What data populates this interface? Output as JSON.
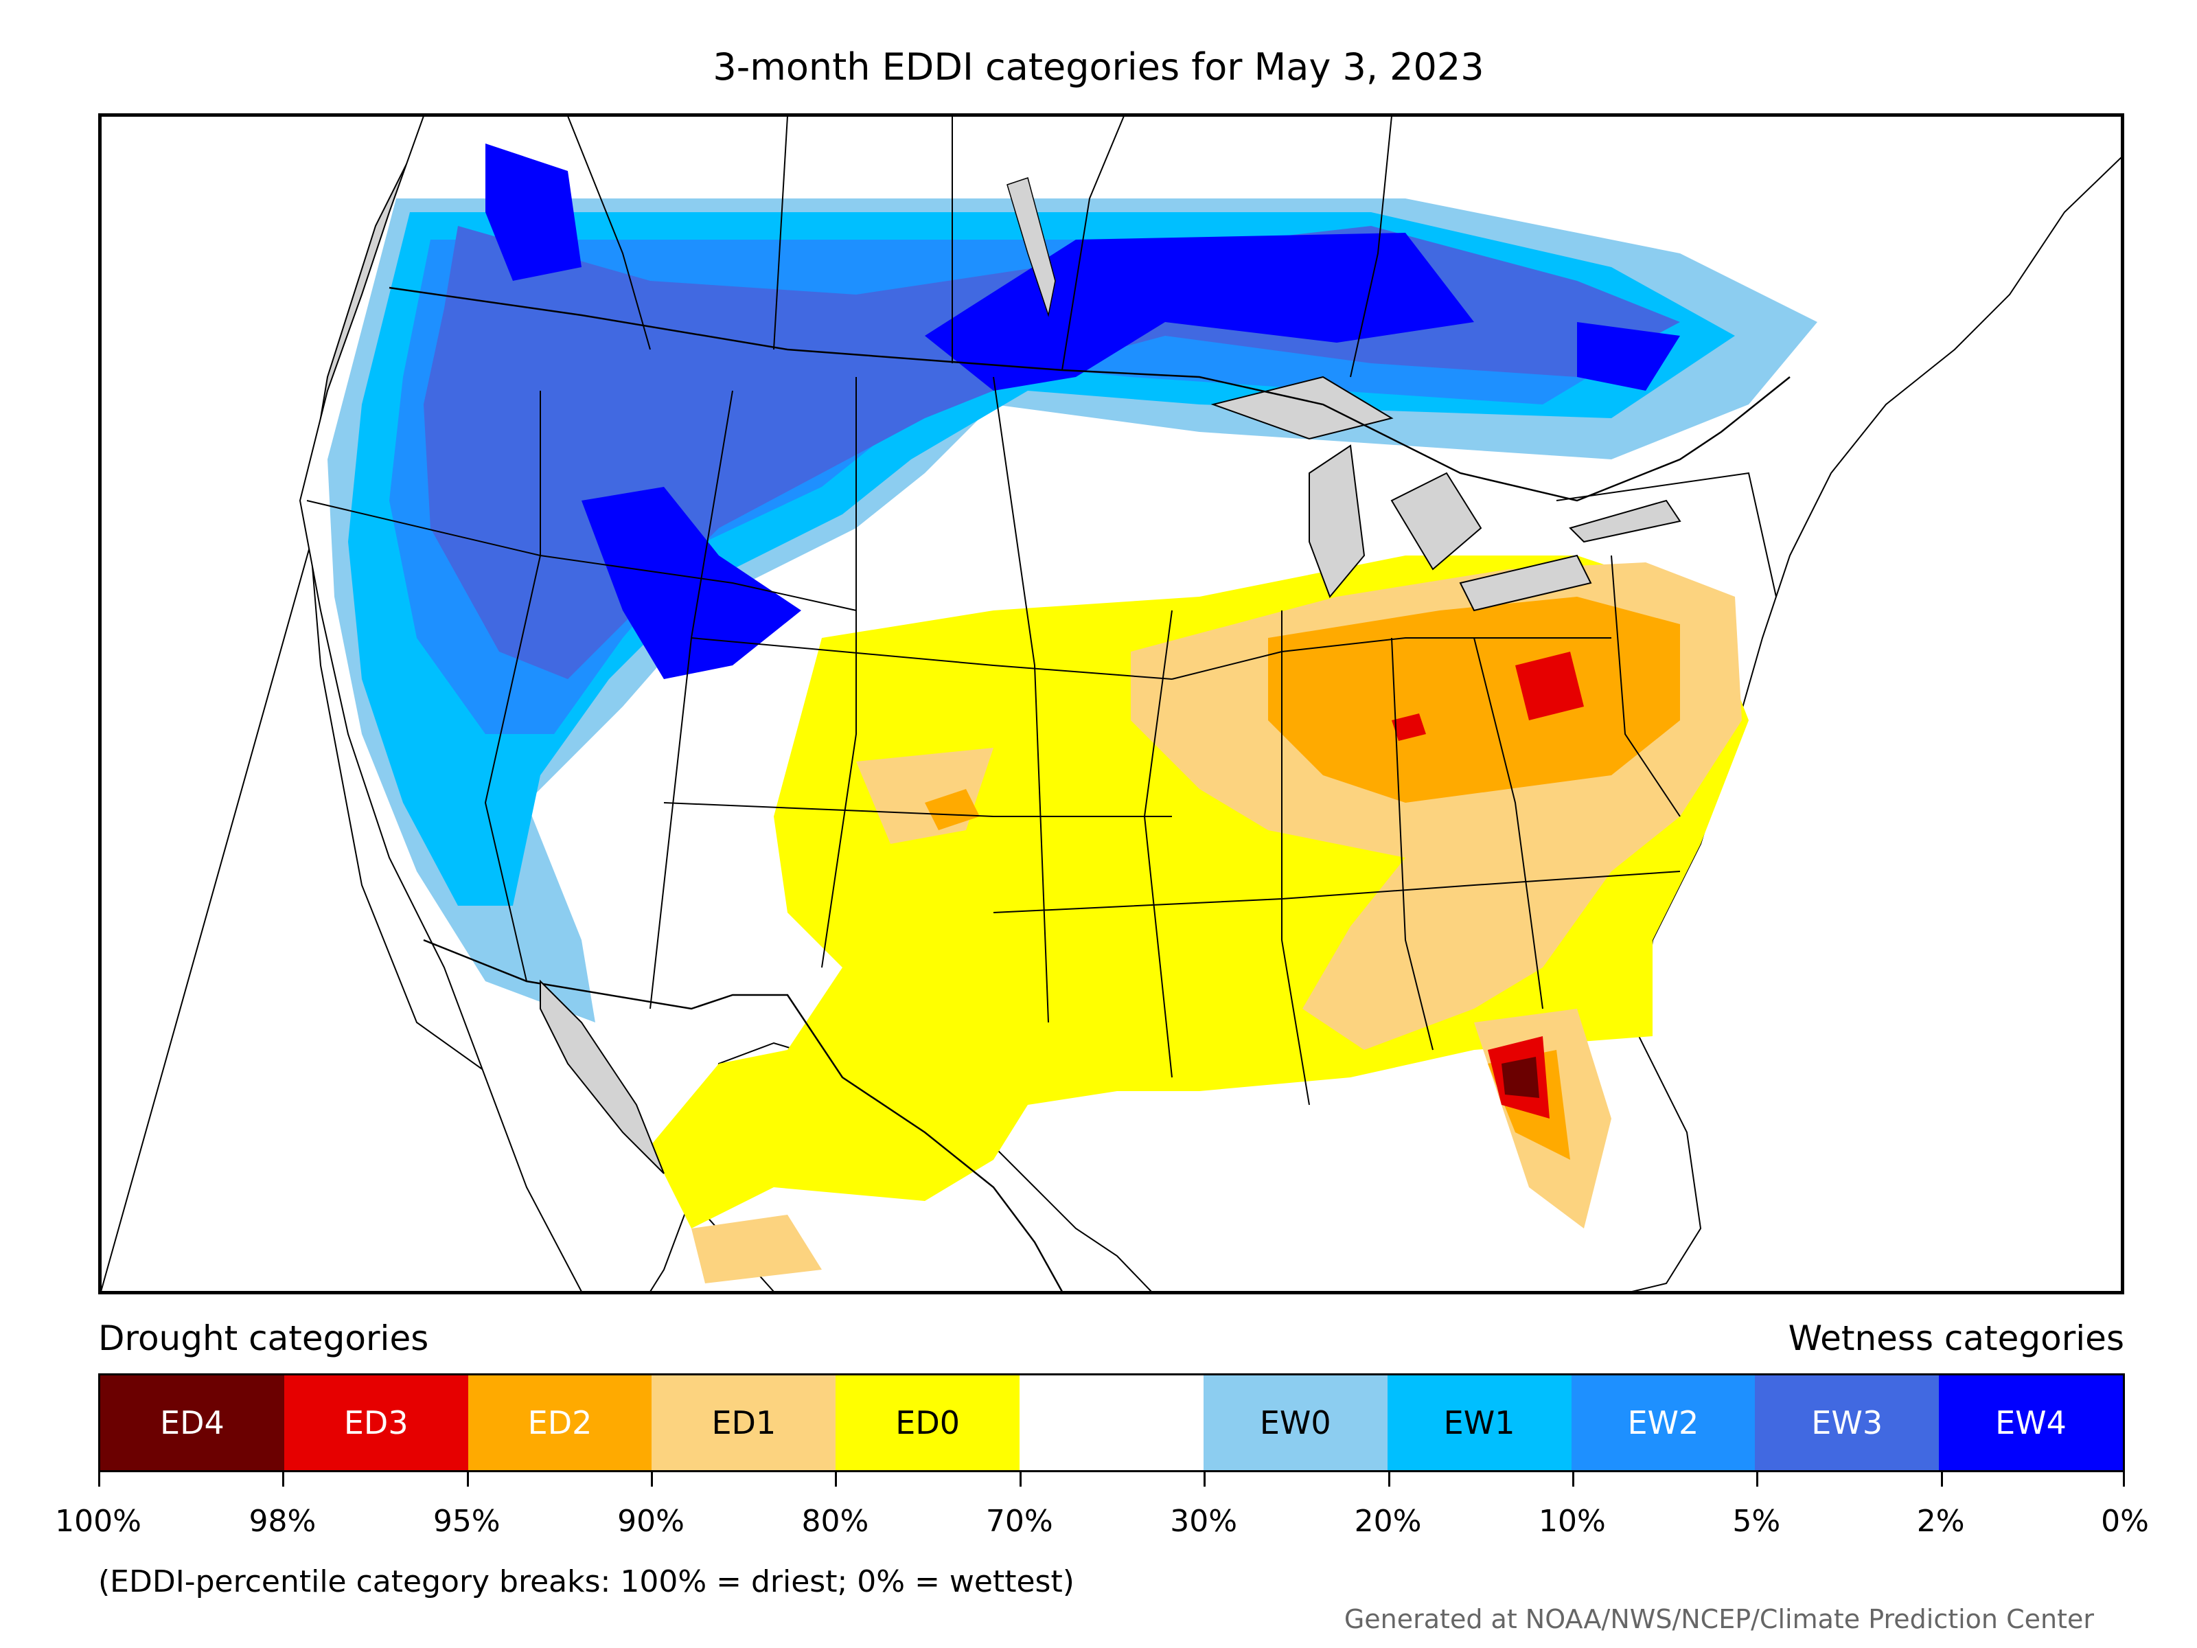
{
  "title": "3-month EDDI categories for May 3, 2023",
  "map": {
    "region": "Contiguous United States with southern Canada and northern Mexico",
    "background_color": "#d3d3d3",
    "features": [
      "state-borders",
      "country-borders",
      "coastlines",
      "great-lakes"
    ]
  },
  "legend": {
    "drought_label": "Drought categories",
    "wetness_label": "Wetness categories",
    "categories": [
      {
        "label": "ED4",
        "color": "#6b0000",
        "text_color": "#ffffff"
      },
      {
        "label": "ED3",
        "color": "#e60000",
        "text_color": "#ffffff"
      },
      {
        "label": "ED2",
        "color": "#ffaa00",
        "text_color": "#ffffff"
      },
      {
        "label": "ED1",
        "color": "#fcd37f",
        "text_color": "#000000"
      },
      {
        "label": "ED0",
        "color": "#ffff00",
        "text_color": "#000000"
      },
      {
        "label": "",
        "color": "#ffffff",
        "text_color": "#000000"
      },
      {
        "label": "EW0",
        "color": "#8ccdf0",
        "text_color": "#000000"
      },
      {
        "label": "EW1",
        "color": "#00bfff",
        "text_color": "#000000"
      },
      {
        "label": "EW2",
        "color": "#1e90ff",
        "text_color": "#ffffff"
      },
      {
        "label": "EW3",
        "color": "#4169e1",
        "text_color": "#ffffff"
      },
      {
        "label": "EW4",
        "color": "#0000ff",
        "text_color": "#ffffff"
      }
    ],
    "ticks": [
      "100%",
      "98%",
      "95%",
      "90%",
      "80%",
      "70%",
      "30%",
      "20%",
      "10%",
      "5%",
      "2%",
      "0%"
    ]
  },
  "note": "(EDDI-percentile category breaks: 100% = driest; 0% = wettest)",
  "credit": "Generated at NOAA/NWS/NCEP/Climate Prediction Center"
}
